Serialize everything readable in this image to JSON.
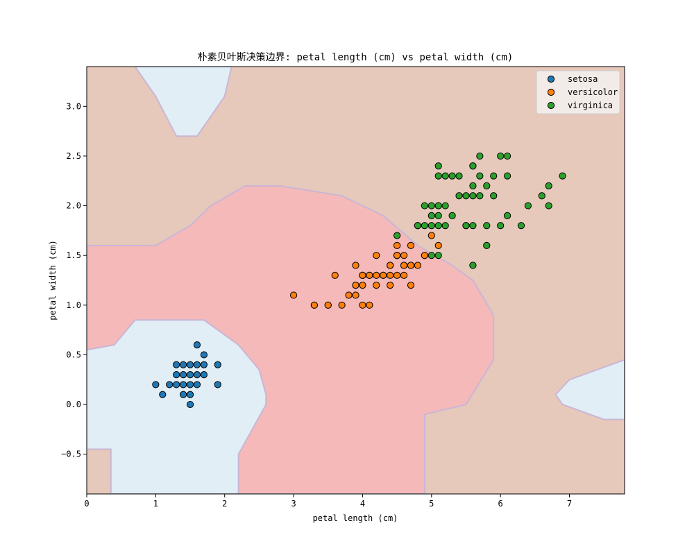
{
  "chart_data": {
    "type": "scatter",
    "title": "朴素贝叶斯决策边界: petal length (cm) vs petal width (cm)",
    "xlabel": "petal length (cm)",
    "ylabel": "petal width (cm)",
    "xlim": [
      0,
      7.8
    ],
    "ylim": [
      -0.9,
      3.4
    ],
    "xticks": [
      0,
      1,
      2,
      3,
      4,
      5,
      6,
      7
    ],
    "yticks": [
      -0.5,
      0.0,
      0.5,
      1.0,
      1.5,
      2.0,
      2.5,
      3.0
    ],
    "xtick_labels": [
      "0",
      "1",
      "2",
      "3",
      "4",
      "5",
      "6",
      "7"
    ],
    "ytick_labels": [
      "−0.5",
      "0.0",
      "0.5",
      "1.0",
      "1.5",
      "2.0",
      "2.5",
      "3.0"
    ],
    "grid": false,
    "legend_position": "top-right",
    "region_colors": {
      "setosa": "#e1eef5",
      "versicolor": "#f4b9b8",
      "virginica": "#e6c9bb"
    },
    "regions": [
      {
        "class": "setosa",
        "points": [
          [
            0.7,
            3.4
          ],
          [
            1.0,
            3.1
          ],
          [
            1.3,
            2.7
          ],
          [
            1.6,
            2.7
          ],
          [
            2.0,
            3.1
          ],
          [
            2.1,
            3.4
          ]
        ]
      },
      {
        "class": "versicolor",
        "points": [
          [
            0,
            1.6
          ],
          [
            1.0,
            1.6
          ],
          [
            1.5,
            1.8
          ],
          [
            1.8,
            2.0
          ],
          [
            2.3,
            2.2
          ],
          [
            2.8,
            2.2
          ],
          [
            3.7,
            2.1
          ],
          [
            4.3,
            1.9
          ],
          [
            4.8,
            1.6
          ],
          [
            5.3,
            1.4
          ],
          [
            5.6,
            1.25
          ],
          [
            5.9,
            0.9
          ],
          [
            5.9,
            0.45
          ],
          [
            5.5,
            0.0
          ],
          [
            4.9,
            -0.1
          ],
          [
            4.9,
            -0.9
          ],
          [
            0.35,
            -0.9
          ],
          [
            0.35,
            -0.45
          ],
          [
            0,
            -0.45
          ]
        ]
      },
      {
        "class": "setosa",
        "points": [
          [
            0,
            0.55
          ],
          [
            0.4,
            0.6
          ],
          [
            0.7,
            0.85
          ],
          [
            1.7,
            0.85
          ],
          [
            2.2,
            0.6
          ],
          [
            2.5,
            0.35
          ],
          [
            2.6,
            0.1
          ],
          [
            2.6,
            0.0
          ],
          [
            2.2,
            -0.5
          ],
          [
            2.2,
            -0.9
          ],
          [
            0.35,
            -0.9
          ],
          [
            0.35,
            -0.45
          ],
          [
            0,
            -0.45
          ]
        ]
      },
      {
        "class": "setosa",
        "points": [
          [
            6.8,
            0.1
          ],
          [
            7.0,
            0.25
          ],
          [
            7.4,
            0.35
          ],
          [
            7.8,
            0.45
          ],
          [
            7.8,
            -0.15
          ],
          [
            7.5,
            -0.15
          ],
          [
            6.9,
            0.0
          ]
        ]
      }
    ],
    "series": [
      {
        "name": "setosa",
        "color": "#1f77b4",
        "points": [
          [
            1.4,
            0.2
          ],
          [
            1.3,
            0.2
          ],
          [
            1.5,
            0.2
          ],
          [
            1.7,
            0.4
          ],
          [
            1.4,
            0.3
          ],
          [
            1.5,
            0.1
          ],
          [
            1.6,
            0.2
          ],
          [
            1.1,
            0.1
          ],
          [
            1.2,
            0.2
          ],
          [
            1.3,
            0.4
          ],
          [
            1.0,
            0.2
          ],
          [
            1.7,
            0.5
          ],
          [
            1.9,
            0.2
          ],
          [
            1.6,
            0.4
          ],
          [
            1.5,
            0.4
          ],
          [
            1.6,
            0.6
          ],
          [
            1.9,
            0.4
          ],
          [
            1.3,
            0.3
          ],
          [
            1.4,
            0.1
          ],
          [
            1.5,
            0.3
          ],
          [
            1.6,
            0.3
          ],
          [
            1.7,
            0.3
          ],
          [
            1.4,
            0.4
          ],
          [
            1.5,
            0.0
          ]
        ]
      },
      {
        "name": "versicolor",
        "color": "#ff7f0e",
        "points": [
          [
            4.7,
            1.4
          ],
          [
            4.5,
            1.5
          ],
          [
            4.9,
            1.5
          ],
          [
            4.0,
            1.3
          ],
          [
            4.6,
            1.5
          ],
          [
            4.5,
            1.3
          ],
          [
            4.7,
            1.6
          ],
          [
            3.3,
            1.0
          ],
          [
            4.6,
            1.3
          ],
          [
            3.9,
            1.4
          ],
          [
            3.5,
            1.0
          ],
          [
            4.2,
            1.5
          ],
          [
            4.0,
            1.0
          ],
          [
            4.7,
            1.4
          ],
          [
            3.6,
            1.3
          ],
          [
            4.4,
            1.4
          ],
          [
            4.5,
            1.5
          ],
          [
            4.1,
            1.0
          ],
          [
            4.5,
            1.5
          ],
          [
            3.9,
            1.1
          ],
          [
            4.8,
            1.8
          ],
          [
            4.0,
            1.3
          ],
          [
            4.9,
            1.5
          ],
          [
            4.7,
            1.2
          ],
          [
            4.3,
            1.3
          ],
          [
            4.4,
            1.4
          ],
          [
            4.8,
            1.4
          ],
          [
            5.0,
            1.7
          ],
          [
            4.5,
            1.5
          ],
          [
            3.5,
            1.0
          ],
          [
            3.8,
            1.1
          ],
          [
            3.7,
            1.0
          ],
          [
            3.9,
            1.2
          ],
          [
            5.1,
            1.6
          ],
          [
            4.5,
            1.5
          ],
          [
            4.5,
            1.6
          ],
          [
            4.4,
            1.3
          ],
          [
            4.1,
            1.3
          ],
          [
            4.0,
            1.3
          ],
          [
            4.4,
            1.2
          ],
          [
            4.6,
            1.4
          ],
          [
            4.0,
            1.2
          ],
          [
            3.3,
            1.0
          ],
          [
            4.2,
            1.3
          ],
          [
            4.2,
            1.2
          ],
          [
            4.3,
            1.3
          ],
          [
            3.0,
            1.1
          ],
          [
            4.1,
            1.3
          ],
          [
            4.6,
            1.4
          ],
          [
            3.9,
            1.2
          ]
        ]
      },
      {
        "name": "virginica",
        "color": "#2ca02c",
        "points": [
          [
            6.0,
            2.5
          ],
          [
            5.1,
            1.9
          ],
          [
            5.9,
            2.1
          ],
          [
            5.6,
            1.8
          ],
          [
            5.8,
            2.2
          ],
          [
            6.6,
            2.1
          ],
          [
            4.5,
            1.7
          ],
          [
            6.3,
            1.8
          ],
          [
            5.8,
            1.8
          ],
          [
            6.1,
            2.5
          ],
          [
            5.1,
            2.0
          ],
          [
            5.3,
            1.9
          ],
          [
            5.5,
            2.1
          ],
          [
            5.0,
            2.0
          ],
          [
            5.1,
            2.4
          ],
          [
            5.3,
            2.3
          ],
          [
            5.5,
            1.8
          ],
          [
            6.7,
            2.2
          ],
          [
            6.9,
            2.3
          ],
          [
            5.0,
            1.5
          ],
          [
            5.7,
            2.3
          ],
          [
            4.9,
            2.0
          ],
          [
            6.7,
            2.0
          ],
          [
            4.9,
            1.8
          ],
          [
            5.7,
            2.1
          ],
          [
            6.0,
            1.8
          ],
          [
            4.8,
            1.8
          ],
          [
            5.6,
            2.1
          ],
          [
            6.1,
            1.9
          ],
          [
            6.4,
            2.0
          ],
          [
            5.6,
            2.2
          ],
          [
            5.1,
            1.5
          ],
          [
            5.6,
            1.4
          ],
          [
            6.1,
            2.3
          ],
          [
            5.6,
            2.4
          ],
          [
            5.5,
            1.8
          ],
          [
            5.4,
            2.1
          ],
          [
            5.6,
            2.4
          ],
          [
            5.1,
            2.3
          ],
          [
            5.9,
            2.3
          ],
          [
            5.7,
            2.5
          ],
          [
            5.2,
            2.3
          ],
          [
            5.0,
            1.9
          ],
          [
            5.2,
            2.0
          ],
          [
            5.4,
            2.3
          ],
          [
            5.1,
            1.8
          ],
          [
            5.8,
            1.6
          ],
          [
            5.0,
            1.8
          ],
          [
            5.2,
            1.8
          ],
          [
            5.1,
            2.0
          ]
        ]
      }
    ]
  }
}
